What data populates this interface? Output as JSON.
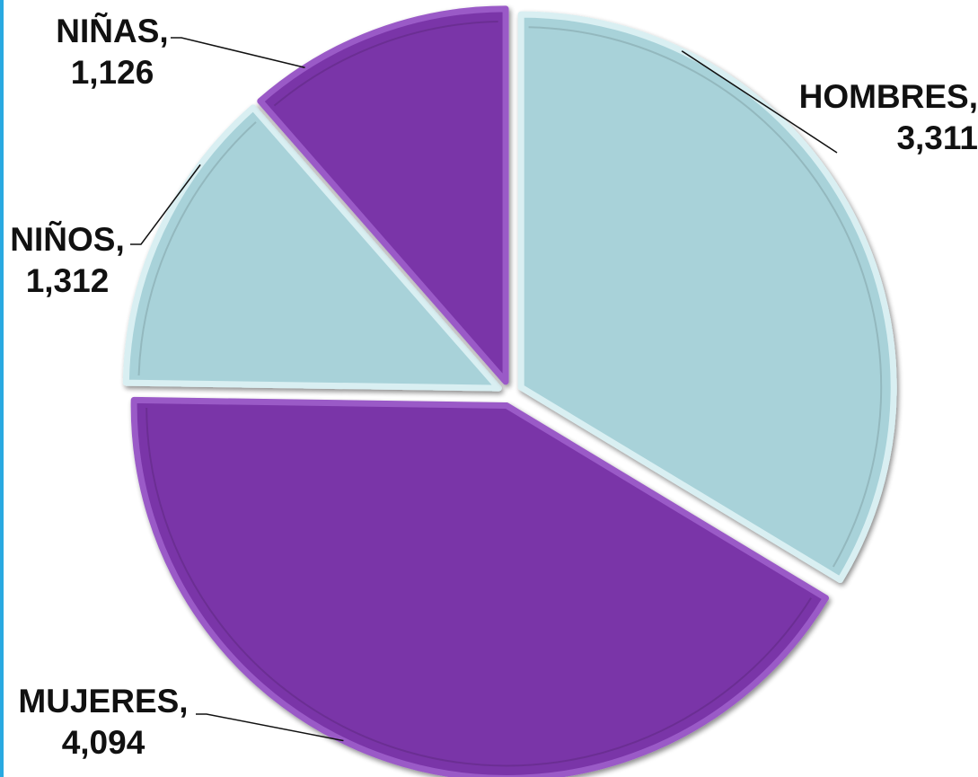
{
  "chart_data": {
    "type": "pie",
    "title": "",
    "categories": [
      "HOMBRES",
      "MUJERES",
      "NIÑOS",
      "NIÑAS"
    ],
    "values": [
      3311,
      4094,
      1312,
      1126
    ],
    "value_labels": [
      "3,311",
      "4,094",
      "1,312",
      "1,126"
    ],
    "label_separator": ",",
    "start_angle_deg": 0,
    "direction": "clockwise",
    "colors": [
      "#a8d2d9",
      "#7a35a8",
      "#a8d2d9",
      "#7a35a8"
    ],
    "border_colors": [
      "#d9eff2",
      "#9a5ac7",
      "#d9eff2",
      "#9a5ac7"
    ],
    "leader_color": "#111111",
    "legend": "none"
  }
}
